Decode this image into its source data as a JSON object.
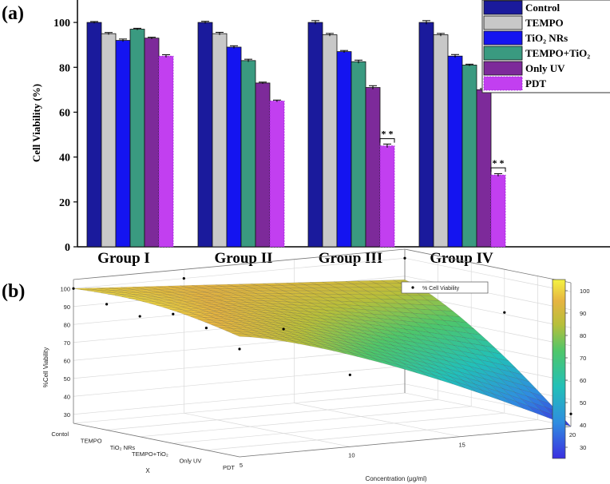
{
  "chart_data": [
    {
      "panel": "(a)",
      "type": "bar",
      "ylabel": "Cell Viability (%)",
      "ylim": [
        0,
        110
      ],
      "yticks": [
        "0",
        "20",
        "40",
        "60",
        "80",
        "100"
      ],
      "categories": [
        "Group I",
        "Group II",
        "Group III",
        "Group IV"
      ],
      "legend_position": "top-right",
      "series": [
        {
          "name": "Control",
          "color": "#1a1a9c",
          "values": [
            100,
            100,
            100,
            100
          ],
          "errors": [
            0.4,
            0.5,
            0.8,
            0.8
          ]
        },
        {
          "name": "TEMPO",
          "color": "#c8c8c8",
          "values": [
            95,
            95,
            94.5,
            94.5
          ],
          "errors": [
            0.5,
            0.6,
            0.6,
            0.6
          ]
        },
        {
          "name": "TiO2 NRs",
          "color": "#1414f0",
          "values": [
            92,
            89,
            87,
            85
          ],
          "errors": [
            0.6,
            0.6,
            0.5,
            0.7
          ]
        },
        {
          "name": "TEMPO+TiO2",
          "color": "#3a9a80",
          "values": [
            97,
            83,
            82.5,
            81
          ],
          "errors": [
            0.4,
            0.6,
            0.7,
            0.4
          ]
        },
        {
          "name": "Only UV",
          "color": "#7d2a9a",
          "values": [
            93,
            73,
            71,
            70
          ],
          "errors": [
            0.4,
            0.4,
            0.8,
            0.5
          ]
        },
        {
          "name": "PDT",
          "color": "#c23ff0",
          "values": [
            85,
            65,
            45,
            32
          ],
          "errors": [
            0.6,
            0.4,
            0.8,
            0.6
          ]
        }
      ],
      "annotations": [
        {
          "text": "* *",
          "category": "Group III"
        },
        {
          "text": "* *",
          "category": "Group IV"
        }
      ]
    },
    {
      "panel": "(b)",
      "type": "surface",
      "zlabel": "%Cell Viability",
      "xlabel": "X",
      "ylabel": "Concentration (μg/ml)",
      "x_categories": [
        "Contol",
        "TEMPO",
        "TiO2 NRs",
        "TEMPO+TiO2",
        "Only UV",
        "PDT"
      ],
      "yticks": [
        "5",
        "10",
        "15",
        "20"
      ],
      "zticks": [
        "30",
        "40",
        "50",
        "60",
        "70",
        "80",
        "90",
        "100"
      ],
      "colorbar_ticks": [
        "30",
        "40",
        "50",
        "60",
        "70",
        "80",
        "90",
        "100"
      ],
      "colorbar_range": [
        25,
        105
      ],
      "legend": "% Cell Viability",
      "scatter_points": [
        {
          "x": "Contol",
          "conc": 5,
          "viability": 100
        },
        {
          "x": "TEMPO",
          "conc": 5,
          "viability": 95
        },
        {
          "x": "TiO2 NRs",
          "conc": 5,
          "viability": 92
        },
        {
          "x": "TEMPO+TiO2",
          "conc": 5,
          "viability": 97
        },
        {
          "x": "Only UV",
          "conc": 5,
          "viability": 93
        },
        {
          "x": "PDT",
          "conc": 5,
          "viability": 85
        },
        {
          "x": "Contol",
          "conc": 10,
          "viability": 100
        },
        {
          "x": "TEMPO+TiO2",
          "conc": 10,
          "viability": 83
        },
        {
          "x": "PDT",
          "conc": 10,
          "viability": 65
        },
        {
          "x": "Contol",
          "conc": 20,
          "viability": 100
        },
        {
          "x": "TEMPO+TiO2",
          "conc": 20,
          "viability": 81
        },
        {
          "x": "PDT",
          "conc": 20,
          "viability": 32
        }
      ]
    }
  ]
}
